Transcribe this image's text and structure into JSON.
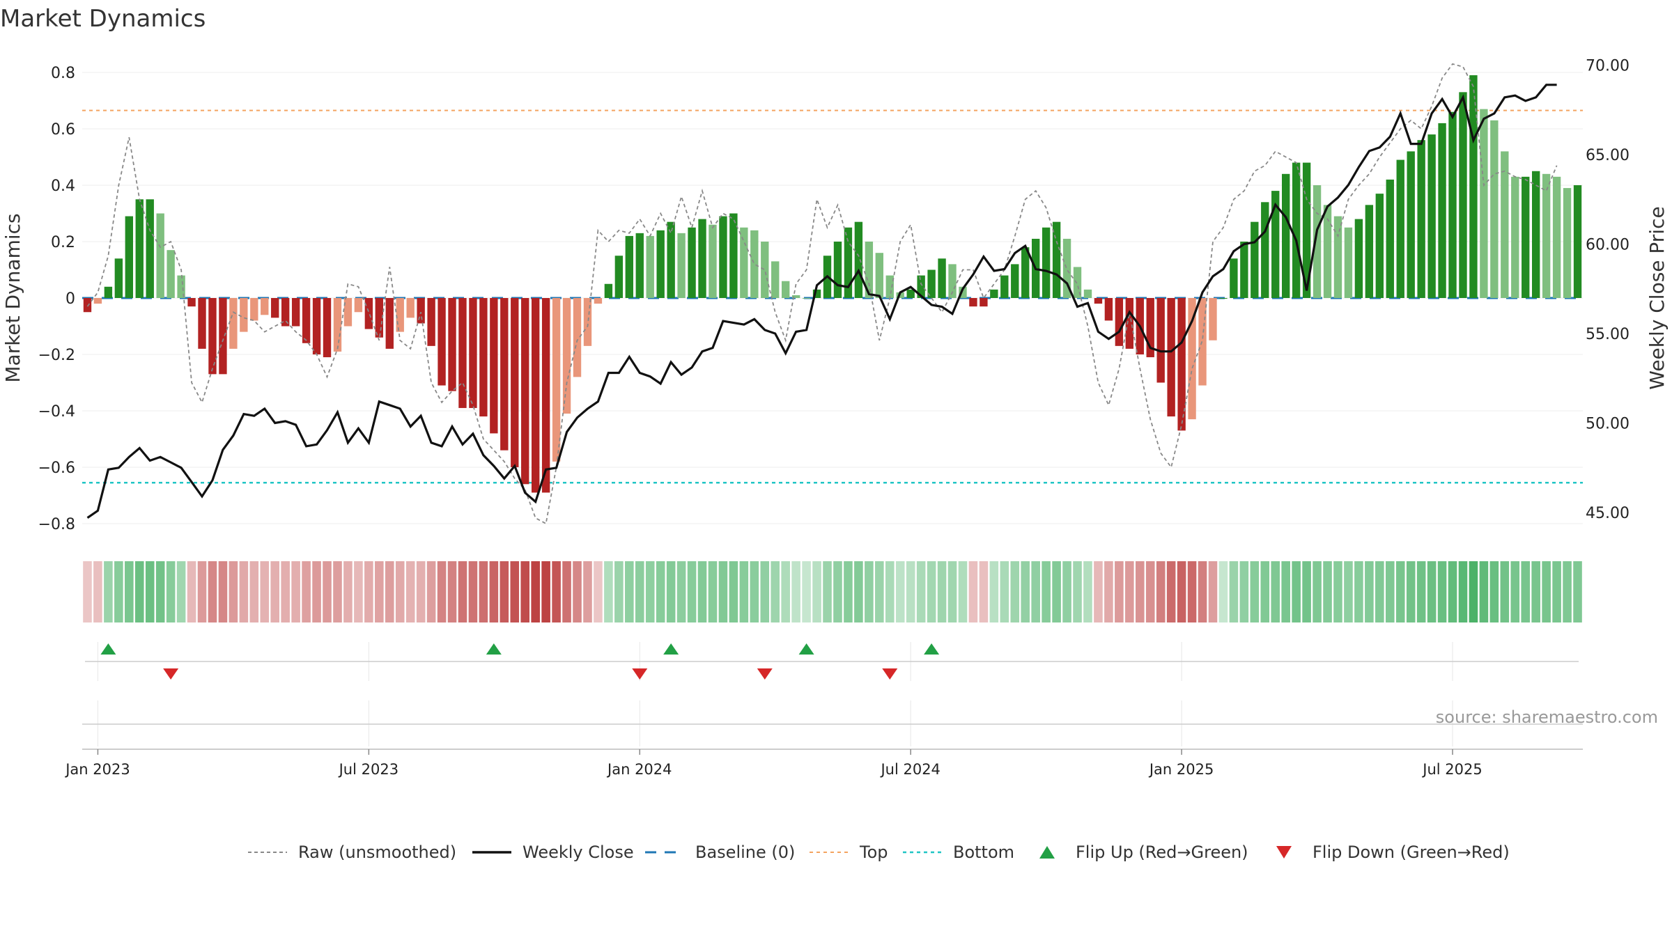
{
  "title": "Market Dynamics",
  "source": "source: sharemaestro.com",
  "colors": {
    "strong_green": "#228B22",
    "weak_green": "#7FBF7F",
    "strong_red": "#B22222",
    "weak_red": "#E9967A",
    "baseline": "#1f77b4",
    "top_line": "#F4A460",
    "bottom_line": "#20C5C5",
    "close_line": "#111111",
    "raw_line": "#888888",
    "flip_up": "#22A045",
    "flip_down": "#D62728"
  },
  "legend": [
    {
      "id": "raw",
      "label": "Raw (unsmoothed)",
      "icon": "dashed-line"
    },
    {
      "id": "close",
      "label": "Weekly Close",
      "icon": "solid-line"
    },
    {
      "id": "baseline",
      "label": "Baseline (0)",
      "icon": "dashed-line"
    },
    {
      "id": "top",
      "label": "Top",
      "icon": "dotted-line"
    },
    {
      "id": "bottom",
      "label": "Bottom",
      "icon": "dotted-line"
    },
    {
      "id": "flip_up",
      "label": "Flip Up (Red→Green)",
      "icon": "triangle-up-icon"
    },
    {
      "id": "flip_down",
      "label": "Flip Down (Green→Red)",
      "icon": "triangle-down-icon"
    }
  ],
  "chart_data": {
    "type": "bar",
    "title": "Market Dynamics",
    "ylabel": "Market Dynamics",
    "y2label": "Weekly Close Price",
    "ylim": [
      -0.85,
      0.85
    ],
    "y2lim": [
      43.5,
      71.0
    ],
    "yticks": [
      -0.8,
      -0.6,
      -0.4,
      -0.2,
      0,
      0.2,
      0.4,
      0.6,
      0.8
    ],
    "ytick_labels": [
      "−0.8",
      "−0.6",
      "−0.4",
      "−0.2",
      "0",
      "0.2",
      "0.4",
      "0.6",
      "0.8"
    ],
    "y2ticks": [
      45,
      50,
      55,
      60,
      65,
      70
    ],
    "y2tick_labels": [
      "45.00",
      "50.00",
      "55.00",
      "60.00",
      "65.00",
      "70.00"
    ],
    "xticks": [
      {
        "label": "Jan 2023",
        "week": 1
      },
      {
        "label": "Jul 2023",
        "week": 27
      },
      {
        "label": "Jan 2024",
        "week": 53
      },
      {
        "label": "Jul 2024",
        "week": 79
      },
      {
        "label": "Jan 2025",
        "week": 105
      },
      {
        "label": "Jul 2025",
        "week": 131
      }
    ],
    "weeks_total": 144,
    "start_date": "2022-12-26",
    "top_level": 0.665,
    "bottom_level": -0.655,
    "baseline": 0,
    "grid": true,
    "legend_position": "bottom",
    "series": [
      {
        "name": "Market Dynamics",
        "type": "bar",
        "values": [
          -0.05,
          -0.02,
          0.04,
          0.14,
          0.29,
          0.35,
          0.35,
          0.3,
          0.17,
          0.08,
          -0.03,
          -0.18,
          -0.27,
          -0.27,
          -0.18,
          -0.12,
          -0.08,
          -0.06,
          -0.07,
          -0.1,
          -0.1,
          -0.16,
          -0.2,
          -0.21,
          -0.19,
          -0.1,
          -0.05,
          -0.11,
          -0.14,
          -0.18,
          -0.12,
          -0.07,
          -0.09,
          -0.17,
          -0.31,
          -0.33,
          -0.39,
          -0.39,
          -0.42,
          -0.48,
          -0.54,
          -0.6,
          -0.66,
          -0.69,
          -0.69,
          -0.58,
          -0.41,
          -0.28,
          -0.17,
          -0.02,
          0.05,
          0.15,
          0.22,
          0.23,
          0.22,
          0.24,
          0.27,
          0.23,
          0.25,
          0.28,
          0.26,
          0.29,
          0.3,
          0.25,
          0.24,
          0.2,
          0.13,
          0.06,
          0.01,
          0.0,
          0.03,
          0.15,
          0.2,
          0.25,
          0.27,
          0.2,
          0.16,
          0.08,
          0.02,
          0.03,
          0.08,
          0.1,
          0.14,
          0.12,
          0.04,
          -0.03,
          -0.03,
          0.03,
          0.08,
          0.12,
          0.18,
          0.21,
          0.25,
          0.27,
          0.21,
          0.11,
          0.03,
          -0.02,
          -0.08,
          -0.17,
          -0.18,
          -0.2,
          -0.21,
          -0.3,
          -0.42,
          -0.47,
          -0.43,
          -0.31,
          -0.15,
          0.0,
          0.14,
          0.2,
          0.27,
          0.34,
          0.38,
          0.44,
          0.48,
          0.48,
          0.4,
          0.33,
          0.29,
          0.25,
          0.28,
          0.33,
          0.37,
          0.42,
          0.49,
          0.52,
          0.56,
          0.58,
          0.62,
          0.66,
          0.73,
          0.79,
          0.67,
          0.63,
          0.52,
          0.43,
          0.43,
          0.45,
          0.44,
          0.43,
          0.39,
          0.4
        ]
      },
      {
        "name": "Raw (unsmoothed)",
        "type": "line",
        "values": [
          -0.03,
          0.02,
          0.15,
          0.4,
          0.57,
          0.35,
          0.24,
          0.18,
          0.2,
          0.1,
          -0.3,
          -0.37,
          -0.25,
          -0.15,
          -0.05,
          -0.07,
          -0.08,
          -0.12,
          -0.1,
          -0.08,
          -0.12,
          -0.15,
          -0.2,
          -0.28,
          -0.18,
          0.05,
          0.04,
          -0.05,
          -0.15,
          0.11,
          -0.15,
          -0.18,
          -0.05,
          -0.3,
          -0.37,
          -0.33,
          -0.3,
          -0.38,
          -0.5,
          -0.54,
          -0.58,
          -0.64,
          -0.68,
          -0.78,
          -0.8,
          -0.6,
          -0.3,
          -0.15,
          -0.1,
          0.24,
          0.2,
          0.24,
          0.23,
          0.28,
          0.22,
          0.3,
          0.23,
          0.36,
          0.25,
          0.38,
          0.25,
          0.3,
          0.28,
          0.2,
          0.12,
          0.1,
          -0.05,
          -0.15,
          0.05,
          0.1,
          0.35,
          0.25,
          0.33,
          0.2,
          0.15,
          0.05,
          -0.15,
          0.0,
          0.2,
          0.26,
          0.05,
          0.0,
          -0.05,
          0.02,
          0.1,
          0.1,
          0.0,
          0.05,
          0.1,
          0.22,
          0.35,
          0.38,
          0.32,
          0.2,
          0.1,
          0.05,
          -0.1,
          -0.3,
          -0.38,
          -0.25,
          -0.05,
          -0.25,
          -0.43,
          -0.55,
          -0.6,
          -0.45,
          -0.25,
          -0.15,
          0.2,
          0.25,
          0.35,
          0.38,
          0.45,
          0.47,
          0.52,
          0.5,
          0.48,
          0.35,
          0.3,
          0.28,
          0.22,
          0.35,
          0.4,
          0.44,
          0.5,
          0.55,
          0.6,
          0.63,
          0.6,
          0.68,
          0.78,
          0.83,
          0.82,
          0.75,
          0.4,
          0.44,
          0.45,
          0.43,
          0.42,
          0.4,
          0.38,
          0.47
        ]
      },
      {
        "name": "Weekly Close",
        "type": "line",
        "axis": "right",
        "values": [
          44.7,
          45.1,
          47.4,
          47.5,
          48.1,
          48.6,
          47.9,
          48.1,
          47.8,
          47.5,
          46.7,
          45.9,
          46.8,
          48.5,
          49.3,
          50.5,
          50.4,
          50.8,
          50.0,
          50.1,
          49.9,
          48.7,
          48.8,
          49.6,
          50.6,
          48.9,
          49.7,
          48.9,
          51.2,
          51.0,
          50.8,
          49.8,
          50.4,
          48.9,
          48.7,
          49.8,
          48.8,
          49.4,
          48.2,
          47.6,
          46.9,
          47.6,
          46.1,
          45.6,
          47.4,
          47.5,
          49.5,
          50.3,
          50.8,
          51.2,
          52.8,
          52.8,
          53.7,
          52.8,
          52.6,
          52.2,
          53.4,
          52.7,
          53.1,
          54.0,
          54.2,
          55.7,
          55.6,
          55.5,
          55.8,
          55.2,
          55.0,
          53.9,
          55.1,
          55.2,
          57.7,
          58.2,
          57.7,
          57.6,
          58.5,
          57.2,
          57.1,
          55.8,
          57.3,
          57.6,
          57.1,
          56.6,
          56.5,
          56.1,
          57.5,
          58.3,
          59.3,
          58.5,
          58.6,
          59.5,
          59.9,
          58.6,
          58.5,
          58.3,
          57.8,
          56.5,
          56.7,
          55.1,
          54.7,
          55.1,
          56.2,
          55.4,
          54.2,
          54.0,
          54.0,
          54.5,
          55.7,
          57.3,
          58.2,
          58.6,
          59.6,
          60.0,
          60.1,
          60.7,
          62.2,
          61.5,
          60.2,
          57.4,
          60.8,
          62.1,
          62.6,
          63.3,
          64.3,
          65.2,
          65.4,
          66.0,
          67.3,
          65.6,
          65.6,
          67.3,
          68.1,
          67.1,
          68.2,
          65.8,
          67.0,
          67.3,
          68.2,
          68.3,
          68.0,
          68.2,
          68.9,
          68.9
        ]
      }
    ],
    "strip_shades": [
      0.15,
      0.2,
      0.45,
      0.55,
      0.65,
      0.75,
      0.75,
      0.7,
      0.55,
      0.4,
      0.25,
      0.45,
      0.55,
      0.55,
      0.45,
      0.35,
      0.3,
      0.28,
      0.3,
      0.32,
      0.32,
      0.4,
      0.45,
      0.45,
      0.42,
      0.32,
      0.25,
      0.33,
      0.38,
      0.42,
      0.35,
      0.28,
      0.3,
      0.42,
      0.58,
      0.6,
      0.68,
      0.68,
      0.72,
      0.78,
      0.84,
      0.9,
      0.95,
      1.0,
      1.0,
      0.88,
      0.7,
      0.55,
      0.42,
      0.15,
      0.3,
      0.45,
      0.52,
      0.53,
      0.52,
      0.55,
      0.58,
      0.53,
      0.55,
      0.58,
      0.56,
      0.6,
      0.62,
      0.55,
      0.54,
      0.5,
      0.42,
      0.32,
      0.2,
      0.15,
      0.25,
      0.45,
      0.5,
      0.55,
      0.58,
      0.5,
      0.45,
      0.35,
      0.22,
      0.25,
      0.35,
      0.38,
      0.42,
      0.4,
      0.3,
      0.2,
      0.2,
      0.25,
      0.35,
      0.42,
      0.48,
      0.5,
      0.55,
      0.58,
      0.5,
      0.4,
      0.28,
      0.25,
      0.35,
      0.45,
      0.45,
      0.48,
      0.5,
      0.62,
      0.75,
      0.8,
      0.76,
      0.62,
      0.42,
      0.15,
      0.45,
      0.5,
      0.55,
      0.6,
      0.62,
      0.65,
      0.68,
      0.68,
      0.62,
      0.58,
      0.55,
      0.52,
      0.55,
      0.58,
      0.6,
      0.62,
      0.66,
      0.7,
      0.72,
      0.74,
      0.76,
      0.8,
      0.86,
      0.95,
      0.82,
      0.76,
      0.7,
      0.66,
      0.66,
      0.66,
      0.66,
      0.65,
      0.62,
      0.62
    ],
    "flips_up_weeks": [
      2,
      39,
      56,
      69,
      81
    ],
    "flips_down_weeks": [
      8,
      53,
      65,
      77
    ]
  }
}
